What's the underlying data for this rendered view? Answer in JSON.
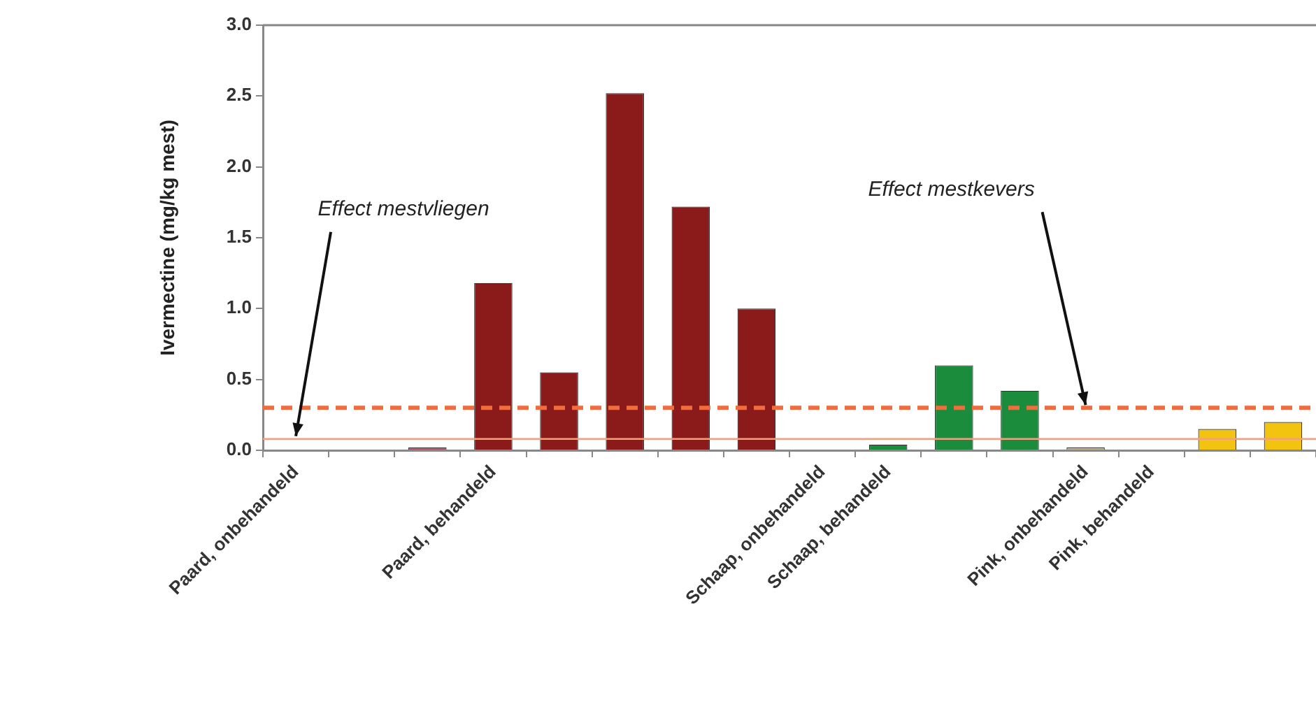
{
  "chart_data": {
    "type": "bar",
    "ylabel": "Ivermectine (mg/kg mest)",
    "categories": [
      "Paard, onbehandeld",
      null,
      null,
      "Paard, behandeld",
      null,
      null,
      null,
      null,
      "Schaap, onbehandeld",
      "Schaap, behandeld",
      null,
      null,
      "Pink, onbehandeld",
      "Pink, behandeld",
      null,
      null
    ],
    "values": [
      null,
      null,
      0.02,
      1.18,
      0.55,
      2.52,
      1.72,
      1.0,
      null,
      0.04,
      0.6,
      0.42,
      0.02,
      null,
      0.15,
      0.2
    ],
    "colors": [
      "#8b1a1a",
      "#8b1a1a",
      "#b05060",
      "#8b1a1a",
      "#8b1a1a",
      "#8b1a1a",
      "#8b1a1a",
      "#8b1a1a",
      "#1a8c3c",
      "#1a8c3c",
      "#1a8c3c",
      "#1a8c3c",
      "#c8b890",
      "#f2c40f",
      "#f2c40f",
      "#f2c40f"
    ],
    "ylim": [
      0,
      3
    ],
    "yticks": [
      {
        "value": 0,
        "label": "0.0"
      },
      {
        "value": 0.5,
        "label": "0.5"
      },
      {
        "value": 1,
        "label": "1.0"
      },
      {
        "value": 1.5,
        "label": "1.5"
      },
      {
        "value": 2,
        "label": "2.0"
      },
      {
        "value": 2.5,
        "label": "2.5"
      },
      {
        "value": 3,
        "label": "3.0"
      }
    ],
    "ref_lines": [
      {
        "axis": "y",
        "value": 0.3,
        "color": "#f26b3a",
        "line_style": "dashed"
      },
      {
        "axis": "y",
        "value": 0.08,
        "color": "#f4a080",
        "line_style": "solid"
      }
    ],
    "annotations": [
      {
        "text": "Effect mestvliegen",
        "x": "Paard, onbehandeld",
        "y": 0.08
      },
      {
        "text": "Effect mestkevers",
        "x": "Pink, onbehandeld",
        "y": 0.3
      }
    ],
    "legend": false,
    "grid": false
  }
}
